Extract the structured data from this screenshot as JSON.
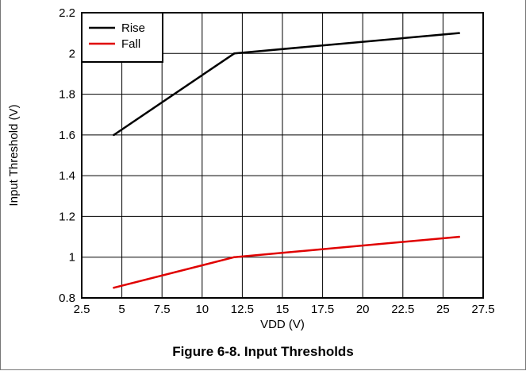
{
  "caption": "Figure 6-8. Input Thresholds",
  "chart_data": {
    "type": "line",
    "xlabel": "VDD (V)",
    "ylabel": "Input Threshold (V)",
    "xlim": [
      2.5,
      27.5
    ],
    "ylim": [
      0.8,
      2.2
    ],
    "xticks": [
      "2.5",
      "5",
      "7.5",
      "10",
      "12.5",
      "15",
      "17.5",
      "20",
      "22.5",
      "25",
      "27.5"
    ],
    "yticks": [
      "0.8",
      "1",
      "1.2",
      "1.4",
      "1.6",
      "1.8",
      "2",
      "2.2"
    ],
    "grid": true,
    "legend_position": "top-left",
    "series": [
      {
        "name": "Rise",
        "color": "#000000",
        "x": [
          4.5,
          12,
          26
        ],
        "y": [
          1.6,
          2.0,
          2.1
        ]
      },
      {
        "name": "Fall",
        "color": "#e00000",
        "x": [
          4.5,
          12,
          26
        ],
        "y": [
          0.85,
          1.0,
          1.1
        ]
      }
    ]
  }
}
